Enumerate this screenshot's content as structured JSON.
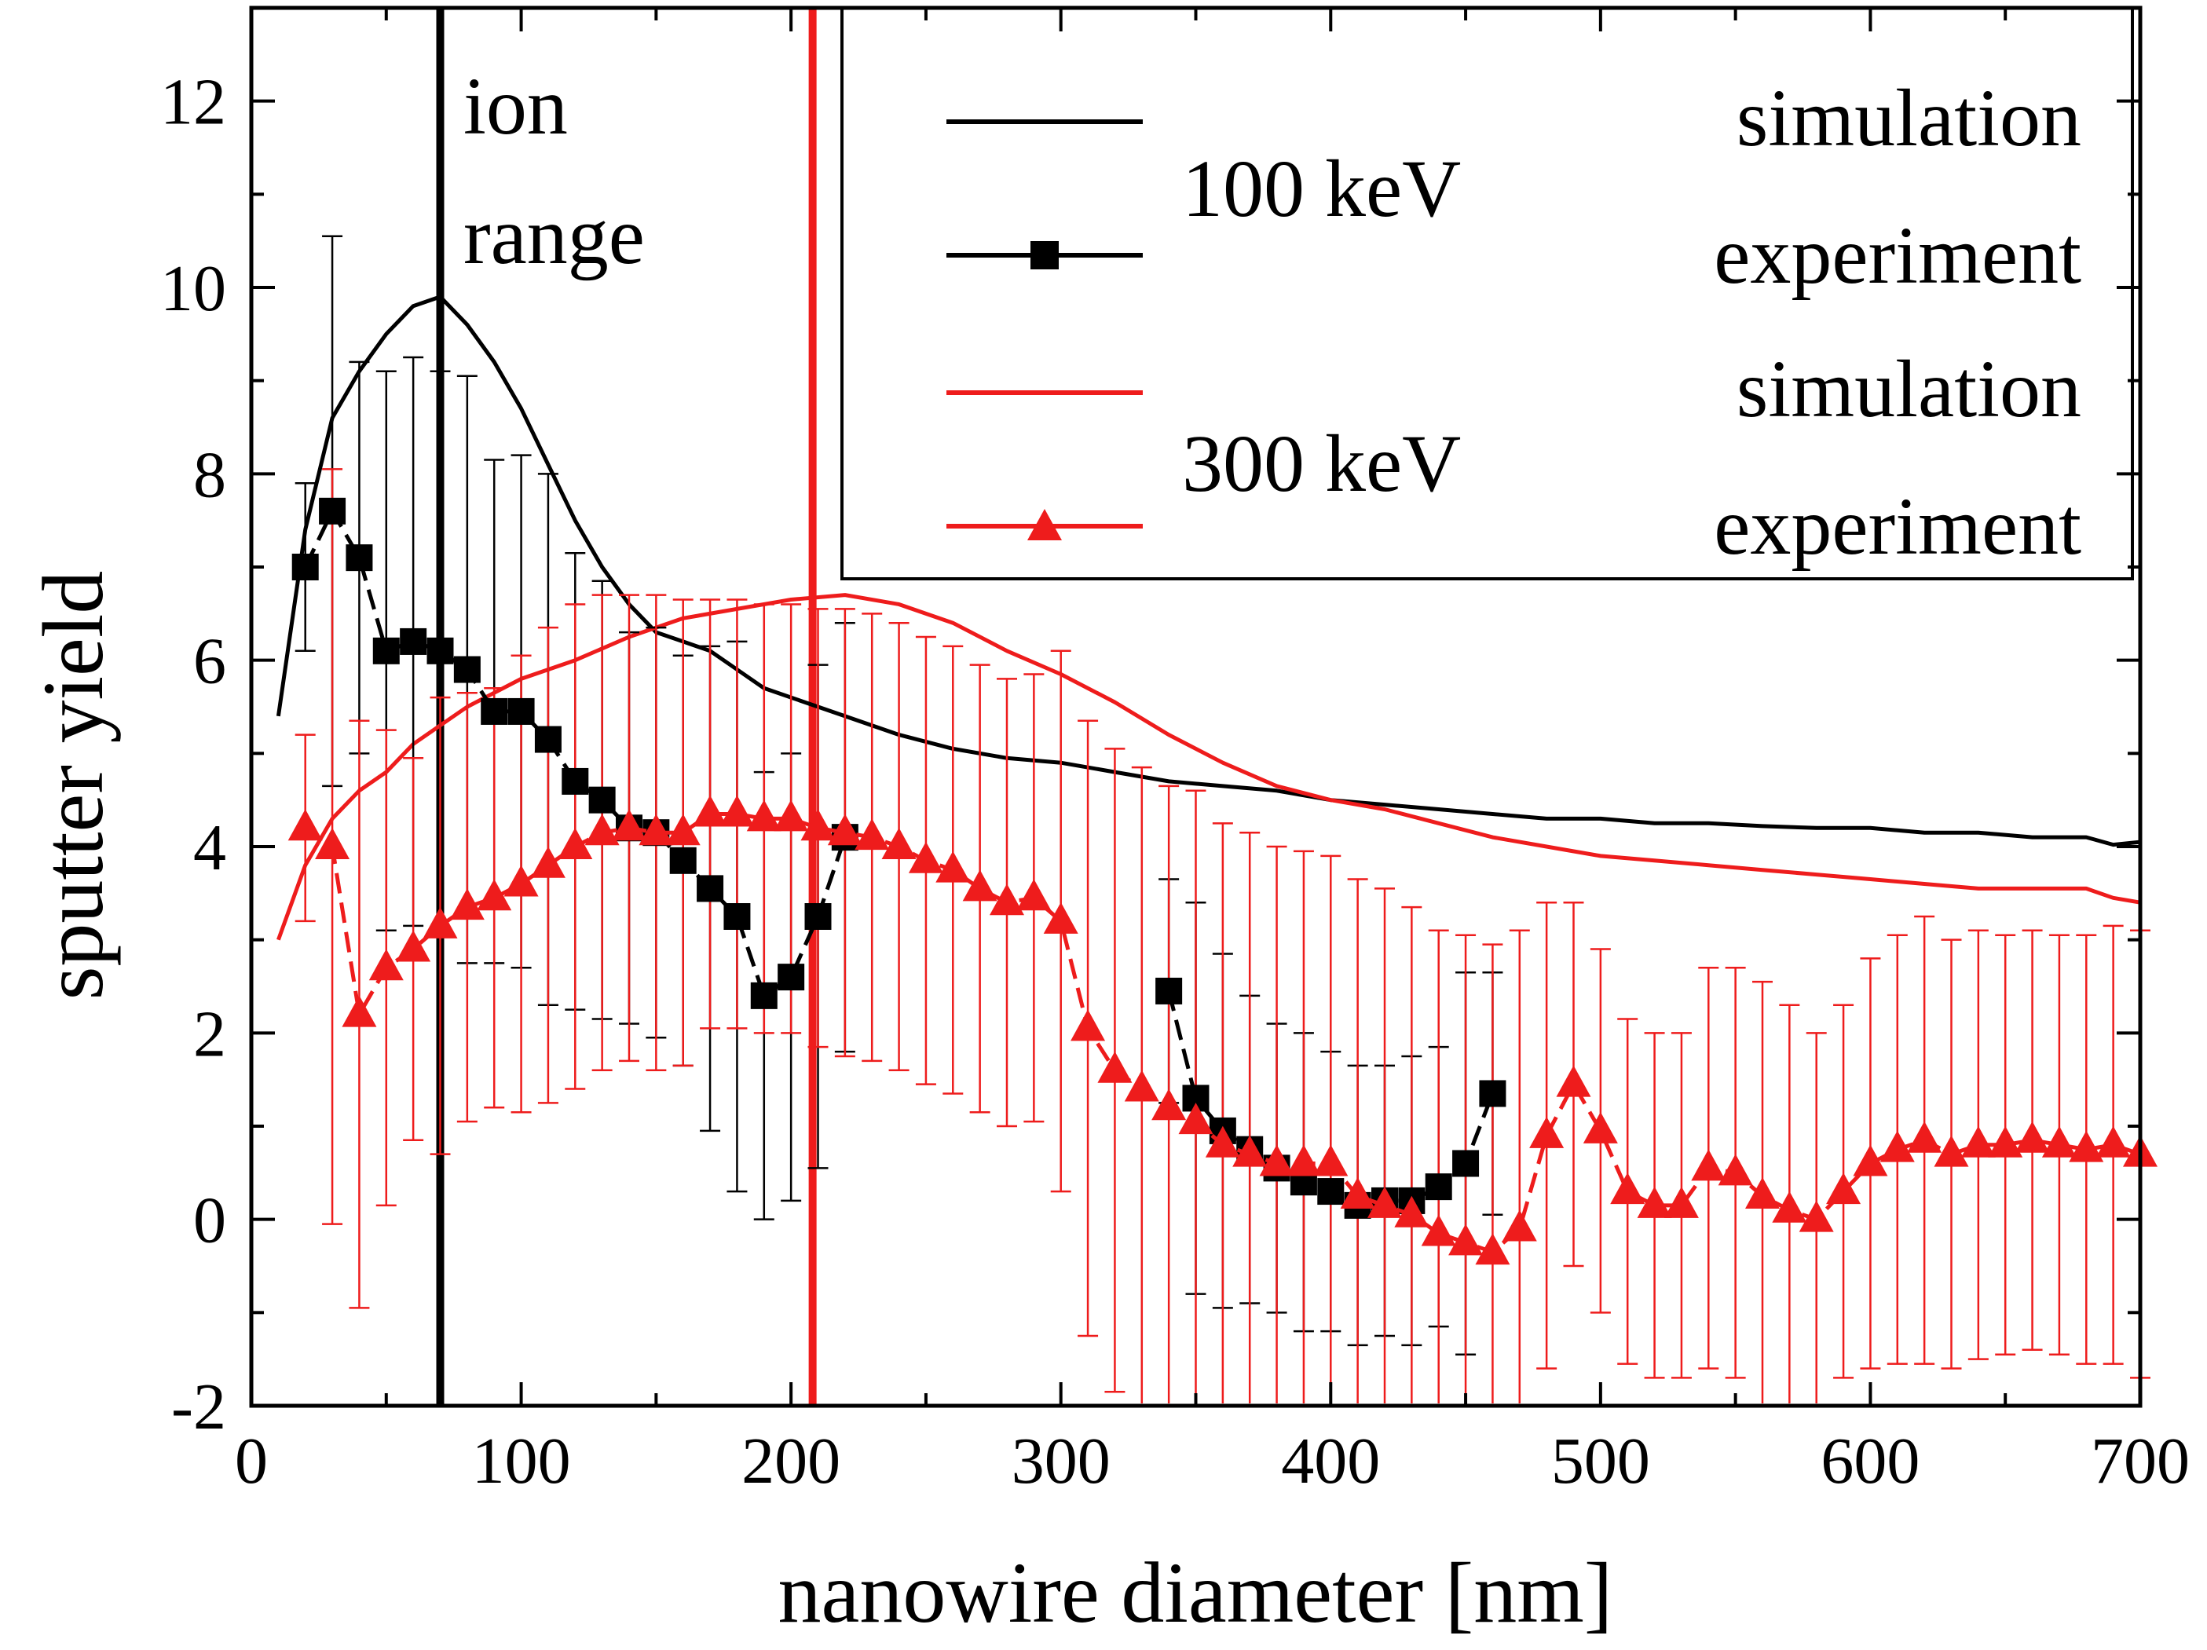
{
  "chart_data": {
    "type": "line",
    "xlabel": "nanowire diameter [nm]",
    "ylabel": "sputter yield",
    "xlim": [
      0,
      700
    ],
    "ylim": [
      -2,
      13
    ],
    "xticks": [
      0,
      100,
      200,
      300,
      400,
      500,
      600,
      700
    ],
    "yticks": [
      -2,
      0,
      2,
      4,
      6,
      8,
      10,
      12
    ],
    "grid": false,
    "legend_position": "top-right",
    "annotation": {
      "line1": "ion",
      "line2": "range"
    },
    "vlines": [
      {
        "x": 70,
        "color": "#000000"
      },
      {
        "x": 208,
        "color": "#ee1c1c"
      }
    ],
    "legend": {
      "group_100": "100 keV",
      "group_300": "300 keV",
      "entries": [
        "simulation",
        "experiment",
        "simulation",
        "experiment"
      ]
    },
    "series": [
      {
        "name": "simulation",
        "group": "100 keV",
        "color": "#000000",
        "style": "line",
        "x": [
          10,
          20,
          30,
          40,
          50,
          60,
          70,
          80,
          90,
          100,
          110,
          120,
          130,
          140,
          150,
          160,
          170,
          180,
          190,
          200,
          220,
          240,
          260,
          280,
          300,
          320,
          340,
          360,
          380,
          400,
          420,
          440,
          460,
          480,
          500,
          520,
          540,
          560,
          580,
          600,
          620,
          640,
          660,
          680,
          690,
          700
        ],
        "y": [
          5.4,
          7.4,
          8.6,
          9.1,
          9.5,
          9.8,
          9.9,
          9.6,
          9.2,
          8.7,
          8.1,
          7.5,
          7.0,
          6.6,
          6.3,
          6.2,
          6.1,
          5.9,
          5.7,
          5.6,
          5.4,
          5.2,
          5.05,
          4.95,
          4.9,
          4.8,
          4.7,
          4.65,
          4.6,
          4.5,
          4.45,
          4.4,
          4.35,
          4.3,
          4.3,
          4.25,
          4.25,
          4.22,
          4.2,
          4.2,
          4.15,
          4.15,
          4.1,
          4.1,
          4.02,
          4.05
        ]
      },
      {
        "name": "experiment",
        "group": "100 keV",
        "color": "#000000",
        "style": "line-square",
        "x": [
          20,
          30,
          40,
          50,
          60,
          70,
          80,
          90,
          100,
          110,
          120,
          130,
          140,
          150,
          160,
          170,
          180,
          190,
          200,
          210,
          220
        ],
        "y": [
          7.0,
          7.6,
          7.1,
          6.1,
          6.2,
          6.1,
          5.9,
          5.45,
          5.45,
          5.15,
          4.7,
          4.5,
          4.2,
          4.15,
          3.85,
          3.55,
          3.25,
          2.4,
          2.6,
          3.25,
          4.1
        ],
        "err": [
          0.9,
          2.95,
          2.1,
          3.0,
          3.05,
          3.0,
          3.15,
          2.7,
          2.75,
          2.85,
          2.45,
          2.35,
          2.1,
          2.2,
          2.2,
          2.6,
          2.95,
          2.4,
          2.4,
          2.7,
          2.3
        ]
      },
      {
        "name": "experiment",
        "group": "100 keV",
        "color": "#000000",
        "style": "line-square",
        "x": [
          340,
          350,
          360,
          370,
          380,
          390,
          400,
          410,
          420,
          430,
          440,
          450,
          460
        ],
        "y": [
          2.45,
          1.3,
          0.95,
          0.75,
          0.55,
          0.4,
          0.3,
          0.15,
          0.2,
          0.2,
          0.35,
          0.6,
          1.35
        ],
        "err": [
          1.2,
          2.1,
          1.9,
          1.65,
          1.55,
          1.6,
          1.5,
          1.5,
          1.45,
          1.55,
          1.5,
          2.05,
          1.3
        ]
      },
      {
        "name": "simulation",
        "group": "300 keV",
        "color": "#ee1c1c",
        "style": "line",
        "x": [
          10,
          20,
          30,
          40,
          50,
          60,
          70,
          80,
          90,
          100,
          120,
          140,
          160,
          180,
          200,
          220,
          240,
          260,
          280,
          300,
          320,
          340,
          360,
          380,
          400,
          420,
          440,
          460,
          480,
          500,
          520,
          540,
          560,
          580,
          600,
          620,
          640,
          660,
          680,
          690,
          700
        ],
        "y": [
          3.0,
          3.8,
          4.3,
          4.6,
          4.8,
          5.1,
          5.3,
          5.5,
          5.65,
          5.8,
          6.0,
          6.25,
          6.45,
          6.55,
          6.65,
          6.7,
          6.6,
          6.4,
          6.1,
          5.85,
          5.55,
          5.2,
          4.9,
          4.65,
          4.5,
          4.4,
          4.25,
          4.1,
          4.0,
          3.9,
          3.85,
          3.8,
          3.75,
          3.7,
          3.65,
          3.6,
          3.55,
          3.55,
          3.55,
          3.45,
          3.4
        ]
      },
      {
        "name": "experiment",
        "group": "300 keV",
        "color": "#ee1c1c",
        "style": "line-triangle",
        "x": [
          20,
          30,
          40,
          50,
          60,
          70,
          80,
          90,
          100,
          110,
          120,
          130,
          140,
          150,
          160,
          170,
          180,
          190,
          200,
          210,
          220,
          230,
          240,
          250,
          260,
          270,
          280,
          290,
          300,
          310,
          320,
          330,
          340,
          350,
          360,
          370,
          380,
          390,
          400,
          410,
          420,
          430,
          440,
          450,
          460,
          470,
          480,
          490,
          500,
          510,
          520,
          530,
          540,
          550,
          560,
          570,
          580,
          590,
          600,
          610,
          620,
          630,
          640,
          650,
          660,
          670,
          680,
          690,
          700
        ],
        "y": [
          4.2,
          4.0,
          2.2,
          2.7,
          2.9,
          3.15,
          3.35,
          3.45,
          3.6,
          3.8,
          4.0,
          4.15,
          4.2,
          4.15,
          4.15,
          4.35,
          4.35,
          4.3,
          4.3,
          4.2,
          4.15,
          4.1,
          4.0,
          3.85,
          3.75,
          3.55,
          3.4,
          3.45,
          3.2,
          2.05,
          1.6,
          1.4,
          1.2,
          1.05,
          0.8,
          0.7,
          0.6,
          0.6,
          0.6,
          0.25,
          0.15,
          0.05,
          -0.15,
          -0.25,
          -0.35,
          -0.1,
          0.9,
          1.45,
          0.95,
          0.3,
          0.15,
          0.15,
          0.55,
          0.5,
          0.25,
          0.1,
          0.0,
          0.3,
          0.6,
          0.75,
          0.85,
          0.7,
          0.8,
          0.8,
          0.85,
          0.8,
          0.75,
          0.8,
          0.7
        ],
        "err": [
          1.0,
          4.05,
          3.15,
          2.55,
          2.05,
          2.45,
          2.3,
          2.25,
          2.45,
          2.55,
          2.6,
          2.55,
          2.5,
          2.55,
          2.5,
          2.3,
          2.3,
          2.3,
          2.3,
          2.35,
          2.4,
          2.4,
          2.4,
          2.4,
          2.4,
          2.4,
          2.4,
          2.4,
          2.9,
          3.3,
          3.45,
          3.45,
          3.45,
          3.55,
          3.45,
          3.45,
          3.4,
          3.35,
          3.3,
          3.4,
          3.4,
          3.3,
          3.25,
          3.3,
          3.3,
          3.2,
          2.5,
          1.95,
          1.95,
          1.85,
          1.85,
          1.85,
          2.15,
          2.2,
          2.3,
          2.2,
          2.0,
          2.0,
          2.2,
          2.3,
          2.4,
          2.3,
          2.3,
          2.25,
          2.25,
          2.25,
          2.3,
          2.35,
          2.4
        ]
      }
    ]
  }
}
